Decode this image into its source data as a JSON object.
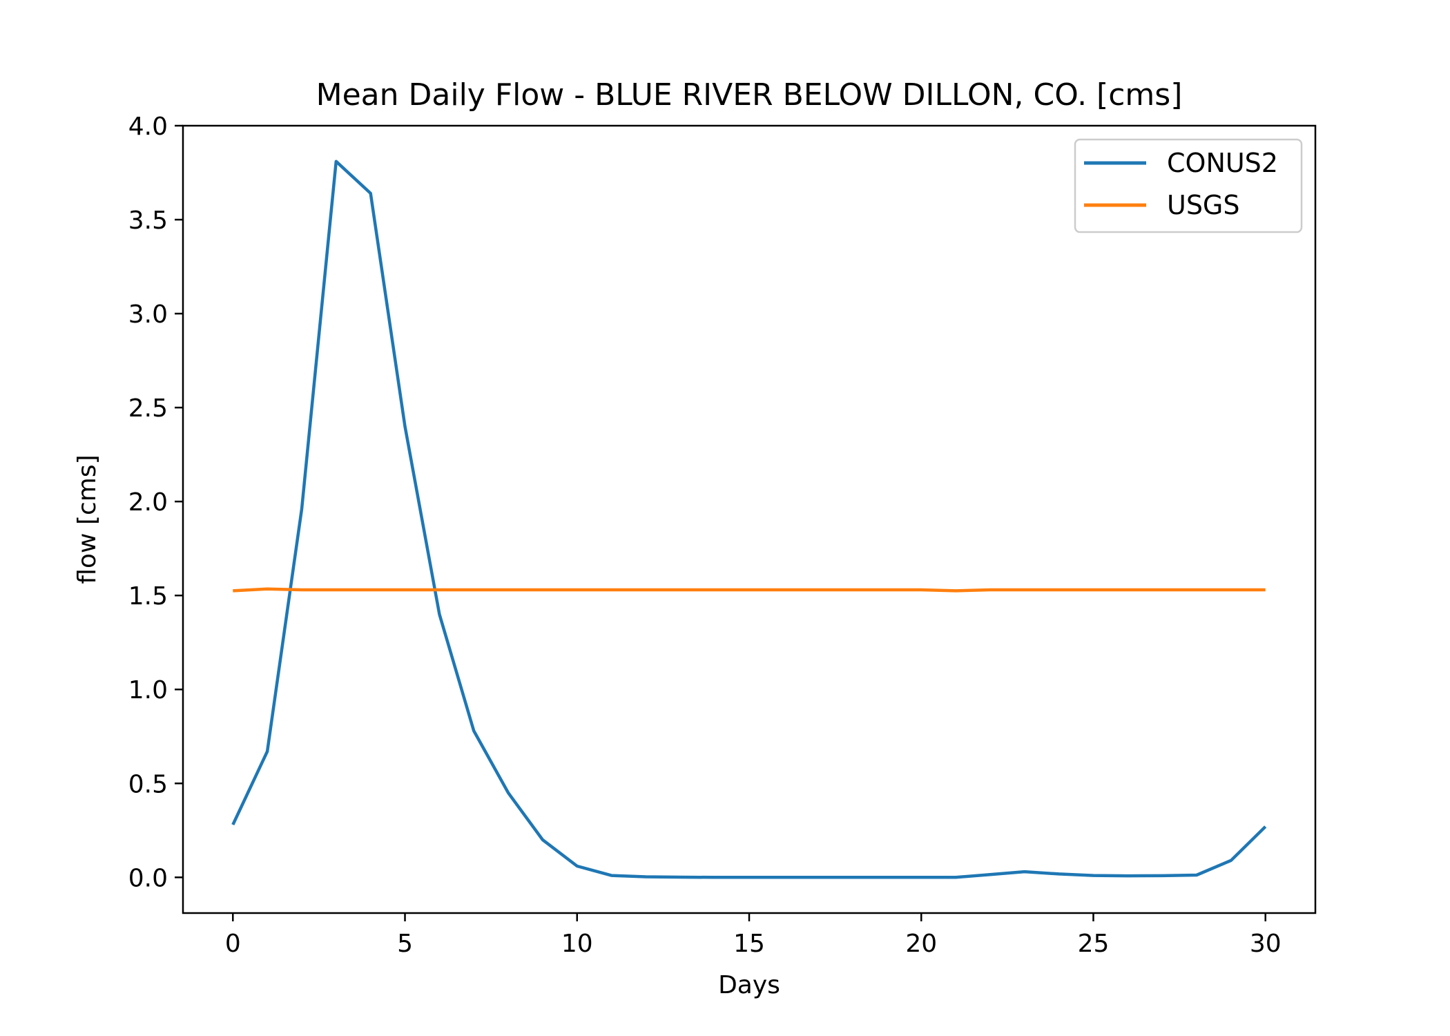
{
  "chart_data": {
    "type": "line",
    "title": "Mean Daily Flow - BLUE RIVER BELOW DILLON, CO. [cms]",
    "xlabel": "Days",
    "ylabel": "flow [cms]",
    "xlim": [
      -1.45,
      31.45
    ],
    "ylim": [
      -0.19,
      4.0
    ],
    "xticks": [
      0,
      5,
      10,
      15,
      20,
      25,
      30
    ],
    "xtick_labels": [
      "0",
      "5",
      "10",
      "15",
      "20",
      "25",
      "30"
    ],
    "yticks": [
      0.0,
      0.5,
      1.0,
      1.5,
      2.0,
      2.5,
      3.0,
      3.5,
      4.0
    ],
    "ytick_labels": [
      "0.0",
      "0.5",
      "1.0",
      "1.5",
      "2.0",
      "2.5",
      "3.0",
      "3.5",
      "4.0"
    ],
    "grid": false,
    "legend_position": "top-right",
    "x": [
      0,
      1,
      2,
      3,
      4,
      5,
      6,
      7,
      8,
      9,
      10,
      11,
      12,
      13,
      14,
      15,
      16,
      17,
      18,
      19,
      20,
      21,
      22,
      23,
      24,
      25,
      26,
      27,
      28,
      29,
      30
    ],
    "series": [
      {
        "name": "CONUS2",
        "color": "#1f77b4",
        "values": [
          0.28,
          0.67,
          1.96,
          3.81,
          3.64,
          2.4,
          1.4,
          0.78,
          0.45,
          0.2,
          0.06,
          0.01,
          0.003,
          0.001,
          0.0,
          0.0,
          0.0,
          0.0,
          0.0,
          0.0,
          0.0,
          0.0,
          0.015,
          0.03,
          0.018,
          0.01,
          0.008,
          0.009,
          0.012,
          0.09,
          0.27
        ]
      },
      {
        "name": "USGS",
        "color": "#ff7f0e",
        "values": [
          1.525,
          1.535,
          1.53,
          1.53,
          1.53,
          1.53,
          1.53,
          1.53,
          1.53,
          1.53,
          1.53,
          1.53,
          1.53,
          1.53,
          1.53,
          1.53,
          1.53,
          1.53,
          1.53,
          1.53,
          1.53,
          1.525,
          1.53,
          1.53,
          1.53,
          1.53,
          1.53,
          1.53,
          1.53,
          1.53,
          1.53
        ]
      }
    ]
  }
}
